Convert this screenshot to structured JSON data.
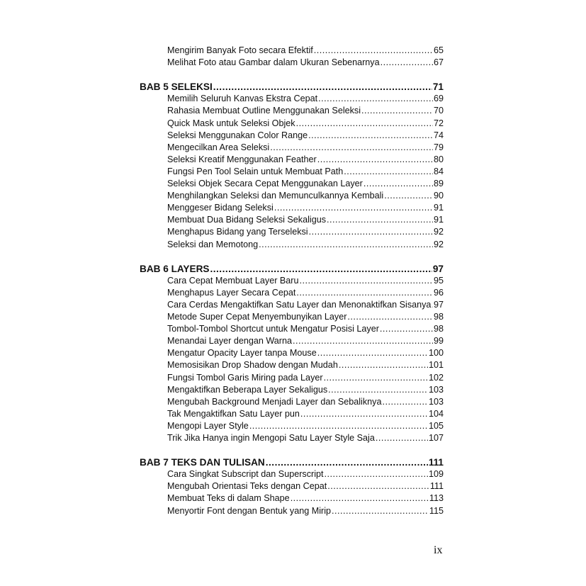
{
  "sections": [
    {
      "chapter": null,
      "entries": [
        {
          "title": "Mengirim Banyak Foto secara Efektif",
          "page": "65"
        },
        {
          "title": "Melihat Foto atau Gambar dalam Ukuran Sebenarnya",
          "page": "67"
        }
      ]
    },
    {
      "chapter": {
        "title": "BAB 5 SELEKSI",
        "page": "71"
      },
      "entries": [
        {
          "title": "Memilih Seluruh Kanvas Ekstra Cepat",
          "page": "69"
        },
        {
          "title": "Rahasia Membuat Outline Menggunakan Seleksi",
          "page": "70"
        },
        {
          "title": "Quick Mask untuk Seleksi Objek",
          "page": "72"
        },
        {
          "title": "Seleksi Menggunakan Color Range",
          "page": "74"
        },
        {
          "title": "Mengecilkan Area Seleksi",
          "page": "79"
        },
        {
          "title": "Seleksi Kreatif Menggunakan Feather",
          "page": "80"
        },
        {
          "title": "Fungsi Pen Tool Selain untuk Membuat Path",
          "page": "84"
        },
        {
          "title": "Seleksi Objek Secara Cepat Menggunakan Layer",
          "page": "89"
        },
        {
          "title": "Menghilangkan Seleksi dan Memunculkannya Kembali",
          "page": "90"
        },
        {
          "title": "Menggeser Bidang Seleksi",
          "page": "91"
        },
        {
          "title": "Membuat Dua Bidang Seleksi Sekaligus",
          "page": "91"
        },
        {
          "title": "Menghapus Bidang yang Terseleksi",
          "page": "92"
        },
        {
          "title": "Seleksi dan Memotong",
          "page": "92"
        }
      ]
    },
    {
      "chapter": {
        "title": "BAB 6 LAYERS",
        "page": "97"
      },
      "entries": [
        {
          "title": "Cara Cepat Membuat Layer Baru",
          "page": "95"
        },
        {
          "title": "Menghapus Layer Secara Cepat",
          "page": "96"
        },
        {
          "title": "Cara Cerdas Mengaktifkan Satu Layer dan Menonaktifkan Sisanya",
          "page": "97"
        },
        {
          "title": "Metode Super Cepat Menyembunyikan Layer",
          "page": "98"
        },
        {
          "title": "Tombol-Tombol Shortcut untuk Mengatur Posisi Layer",
          "page": "98"
        },
        {
          "title": "Menandai Layer dengan Warna",
          "page": "99"
        },
        {
          "title": "Mengatur Opacity Layer tanpa Mouse",
          "page": "100"
        },
        {
          "title": "Memosisikan Drop Shadow dengan Mudah",
          "page": "101"
        },
        {
          "title": "Fungsi Tombol Garis Miring pada Layer",
          "page": "102"
        },
        {
          "title": "Mengaktifkan Beberapa Layer Sekaligus",
          "page": "103"
        },
        {
          "title": "Mengubah Background Menjadi Layer dan Sebaliknya",
          "page": "103"
        },
        {
          "title": "Tak Mengaktifkan Satu Layer pun",
          "page": "104"
        },
        {
          "title": "Mengopi Layer Style",
          "page": "105"
        },
        {
          "title": "Trik Jika Hanya ingin Mengopi Satu Layer Style Saja",
          "page": "107"
        }
      ]
    },
    {
      "chapter": {
        "title": "BAB 7 TEKS DAN TULISAN",
        "page": "111"
      },
      "entries": [
        {
          "title": "Cara Singkat Subscript dan Superscript",
          "page": "109"
        },
        {
          "title": "Mengubah Orientasi Teks dengan Cepat",
          "page": "111"
        },
        {
          "title": "Membuat Teks di dalam Shape",
          "page": "113"
        },
        {
          "title": "Menyortir Font dengan Bentuk yang Mirip",
          "page": "115"
        }
      ]
    }
  ],
  "folio": "ix"
}
